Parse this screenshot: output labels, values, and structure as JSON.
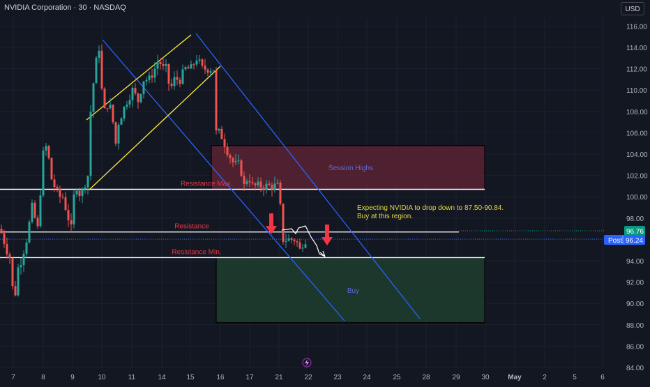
{
  "header": {
    "title": "NVIDIA Corporation · 30 · NASDAQ",
    "currency": "USD"
  },
  "colors": {
    "background": "#131722",
    "up": "#26a69a",
    "down": "#ef5350",
    "channel": "#2962ff",
    "trend": "#ffeb3b",
    "zone_red": "#5a2333",
    "zone_green": "#1e3d2d",
    "arrow": "#f23645",
    "annotation": "#e6d93b",
    "price_green": "#089981",
    "price_blue": "#2962ff"
  },
  "chart_data": {
    "type": "candlestick",
    "ylim": [
      84,
      117
    ],
    "y_ticks": [
      "116.00",
      "114.00",
      "112.00",
      "110.00",
      "108.00",
      "106.00",
      "104.00",
      "102.00",
      "100.00",
      "98.00",
      "96.00",
      "94.00",
      "92.00",
      "90.00",
      "88.00",
      "86.00",
      "84.00"
    ],
    "x_ticks": [
      "7",
      "8",
      "9",
      "10",
      "11",
      "14",
      "15",
      "16",
      "17",
      "21",
      "22",
      "23",
      "24",
      "25",
      "28",
      "29",
      "30",
      "May",
      "2",
      "5",
      "6"
    ],
    "lines": [
      {
        "label": "Resistance Max.",
        "price": 100.7
      },
      {
        "label": "Resistance",
        "price": 96.7
      },
      {
        "label": "Resistance Min.",
        "price": 94.3
      }
    ],
    "zones": [
      {
        "label": "Session Highs",
        "low": 100.7,
        "high": 104.8
      },
      {
        "label": "Buy",
        "low": 88.2,
        "high": 94.3
      }
    ],
    "annotation": [
      "Expecting NVIDIA to drop down to 87.50-90.84.",
      "Buy at this region."
    ],
    "price_labels": [
      {
        "value": "96.76"
      },
      {
        "tag": "Post",
        "value": "96.24"
      }
    ],
    "channel_trend": "descending parallel channel",
    "ascending_channel": "rising yellow channel"
  }
}
